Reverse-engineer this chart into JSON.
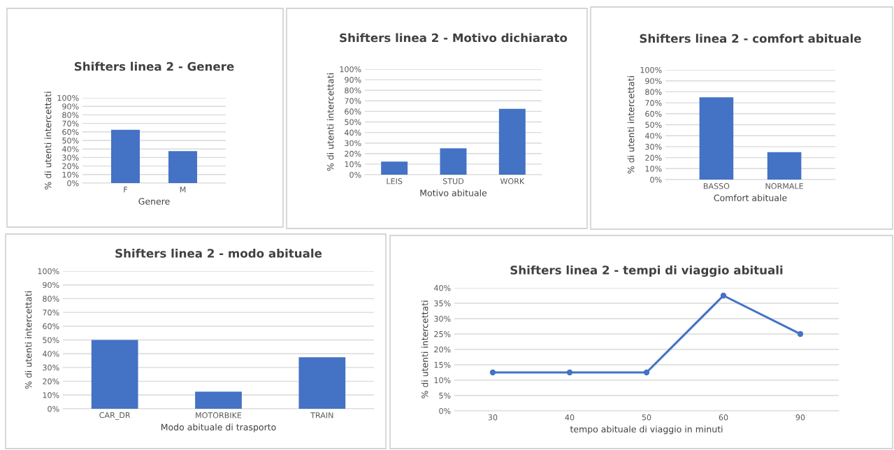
{
  "chart_data": [
    {
      "type": "bar",
      "title": "Shifters linea 2 - Genere",
      "xlabel": "Genere",
      "ylabel": "% di utenti intercettati",
      "categories": [
        "F",
        "M"
      ],
      "values": [
        62.5,
        37.5
      ],
      "color": "#4472c4",
      "ylim": [
        0,
        100
      ],
      "yticks": [
        {
          "value": 0,
          "label": "0%"
        },
        {
          "value": 10,
          "label": "10%"
        },
        {
          "value": 20,
          "label": "20%"
        },
        {
          "value": 30,
          "label": "30%"
        },
        {
          "value": 40,
          "label": "40%"
        },
        {
          "value": 50,
          "label": "50%"
        },
        {
          "value": 60,
          "label": "60%"
        },
        {
          "value": 70,
          "label": "70%"
        },
        {
          "value": 80,
          "label": "80%"
        },
        {
          "value": 90,
          "label": "90%"
        },
        {
          "value": 100,
          "label": "100%"
        }
      ],
      "grid": "y",
      "legend": false
    },
    {
      "type": "bar",
      "title": "Shifters linea 2 - Motivo dichiarato",
      "xlabel": "Motivo abituale",
      "ylabel": "% di utenti intercettati",
      "categories": [
        "LEIS",
        "STUD",
        "WORK"
      ],
      "values": [
        12.5,
        25,
        62.5
      ],
      "color": "#4472c4",
      "ylim": [
        0,
        100
      ],
      "yticks": [
        {
          "value": 0,
          "label": "0%"
        },
        {
          "value": 10,
          "label": "10%"
        },
        {
          "value": 20,
          "label": "20%"
        },
        {
          "value": 30,
          "label": "30%"
        },
        {
          "value": 40,
          "label": "40%"
        },
        {
          "value": 50,
          "label": "50%"
        },
        {
          "value": 60,
          "label": "60%"
        },
        {
          "value": 70,
          "label": "70%"
        },
        {
          "value": 80,
          "label": "80%"
        },
        {
          "value": 90,
          "label": "90%"
        },
        {
          "value": 100,
          "label": "100%"
        }
      ],
      "grid": "y",
      "legend": false
    },
    {
      "type": "bar",
      "title": "Shifters linea 2 - comfort abituale",
      "xlabel": "Comfort abituale",
      "ylabel": "% di utenti intercettati",
      "categories": [
        "BASSO",
        "NORMALE"
      ],
      "values": [
        75,
        25
      ],
      "color": "#4472c4",
      "ylim": [
        0,
        100
      ],
      "yticks": [
        {
          "value": 0,
          "label": "0%"
        },
        {
          "value": 10,
          "label": "10%"
        },
        {
          "value": 20,
          "label": "20%"
        },
        {
          "value": 30,
          "label": "30%"
        },
        {
          "value": 40,
          "label": "40%"
        },
        {
          "value": 50,
          "label": "50%"
        },
        {
          "value": 60,
          "label": "60%"
        },
        {
          "value": 70,
          "label": "70%"
        },
        {
          "value": 80,
          "label": "80%"
        },
        {
          "value": 90,
          "label": "90%"
        },
        {
          "value": 100,
          "label": "100%"
        }
      ],
      "grid": "y",
      "legend": false
    },
    {
      "type": "bar",
      "title": "Shifters linea 2 - modo abituale",
      "xlabel": "Modo abituale di trasporto",
      "ylabel": "% di utenti intercettati",
      "categories": [
        "CAR_DR",
        "MOTORBIKE",
        "TRAIN"
      ],
      "values": [
        50,
        12.5,
        37.5
      ],
      "color": "#4472c4",
      "ylim": [
        0,
        100
      ],
      "yticks": [
        {
          "value": 0,
          "label": "0%"
        },
        {
          "value": 10,
          "label": "10%"
        },
        {
          "value": 20,
          "label": "20%"
        },
        {
          "value": 30,
          "label": "30%"
        },
        {
          "value": 40,
          "label": "40%"
        },
        {
          "value": 50,
          "label": "50%"
        },
        {
          "value": 60,
          "label": "60%"
        },
        {
          "value": 70,
          "label": "70%"
        },
        {
          "value": 80,
          "label": "80%"
        },
        {
          "value": 90,
          "label": "90%"
        },
        {
          "value": 100,
          "label": "100%"
        }
      ],
      "grid": "y",
      "legend": false
    },
    {
      "type": "line",
      "title": "Shifters linea 2 - tempi di viaggio abituali",
      "xlabel": "tempo abituale di viaggio in minuti",
      "ylabel": "% di utenti intercettati",
      "categories": [
        "30",
        "40",
        "50",
        "60",
        "90"
      ],
      "values": [
        12.5,
        12.5,
        12.5,
        37.5,
        25
      ],
      "color": "#4472c4",
      "marker": "circle",
      "line_style": "solid",
      "ylim": [
        0,
        40
      ],
      "yticks": [
        {
          "value": 0,
          "label": "0%"
        },
        {
          "value": 5,
          "label": "5%"
        },
        {
          "value": 10,
          "label": "10%"
        },
        {
          "value": 15,
          "label": "15%"
        },
        {
          "value": 20,
          "label": "20%"
        },
        {
          "value": 25,
          "label": "25%"
        },
        {
          "value": 30,
          "label": "30%"
        },
        {
          "value": 35,
          "label": "35%"
        },
        {
          "value": 40,
          "label": "40%"
        }
      ],
      "grid": "y",
      "legend": false
    }
  ]
}
